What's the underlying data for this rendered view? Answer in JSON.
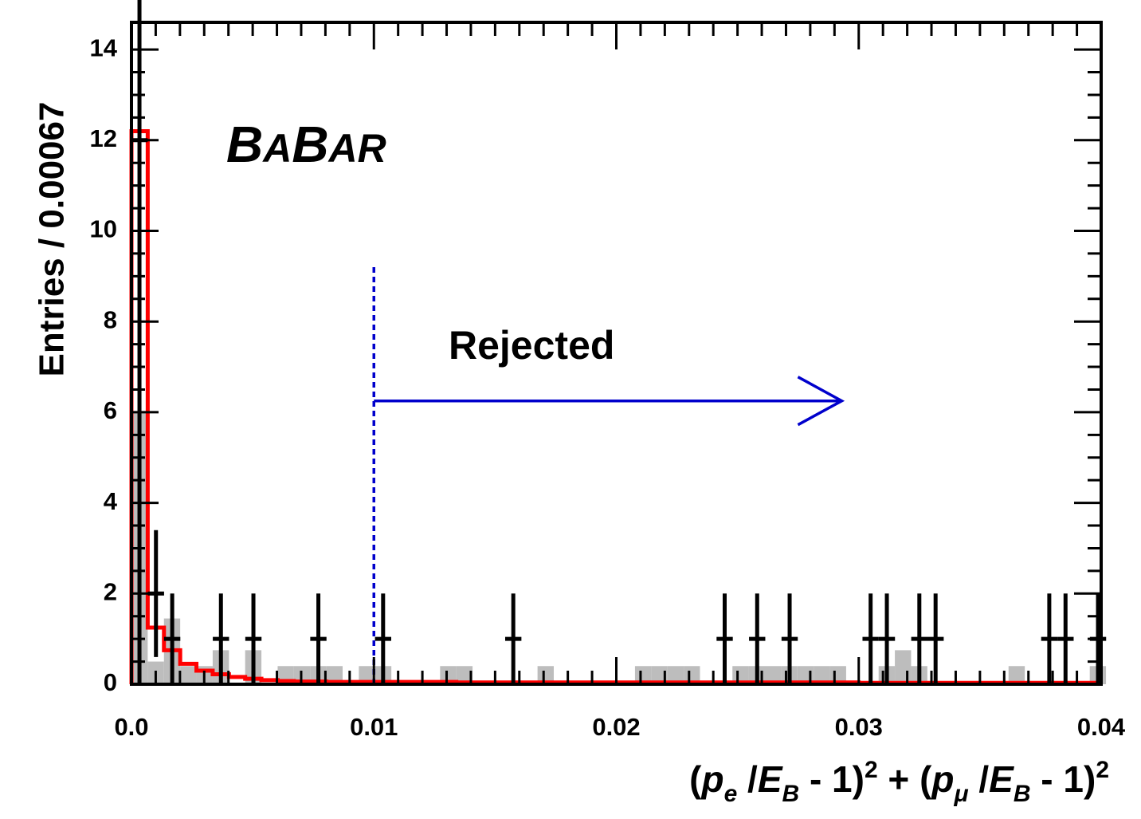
{
  "chart_data": {
    "type": "histogram",
    "bin_width": 0.00067,
    "xlim": [
      0.0,
      0.04
    ],
    "ylim": [
      0,
      14.6
    ],
    "x_ticks": [
      {
        "v": 0.0,
        "label": "0.0"
      },
      {
        "v": 0.01,
        "label": "0.01"
      },
      {
        "v": 0.02,
        "label": "0.02"
      },
      {
        "v": 0.03,
        "label": "0.03"
      },
      {
        "v": 0.04,
        "label": "0.04"
      }
    ],
    "y_ticks": [
      {
        "v": 0,
        "label": "0"
      },
      {
        "v": 2,
        "label": "2"
      },
      {
        "v": 4,
        "label": "4"
      },
      {
        "v": 6,
        "label": "6"
      },
      {
        "v": 8,
        "label": "8"
      },
      {
        "v": 10,
        "label": "10"
      },
      {
        "v": 12,
        "label": "12"
      },
      {
        "v": 14,
        "label": "14"
      }
    ],
    "ylabel": "Entries / 0.00067",
    "xlabel": {
      "p": "p",
      "e": "e",
      "mu": "μ",
      "E": "E",
      "B": "B",
      "open": "(",
      "slash": " /",
      "minus_one": " - 1)",
      "two": "2",
      "plus": " + "
    },
    "experiment_label": {
      "big1": "B",
      "small1": "A",
      "big2": "B",
      "small2": "AR"
    },
    "cut": {
      "x": 0.01,
      "label": "Rejected",
      "arrow_to": 0.0293,
      "arrow_y": 6.25,
      "line_top": 9.2
    },
    "styles": {
      "data": "#000000",
      "background": "#bdbdbd",
      "fit": "#ff0000",
      "cut": "#0000cc"
    },
    "series": [
      {
        "name": "",
        "style": "gray filled histogram",
        "bins": [
          [
            0.0,
            6.0
          ],
          [
            0.00067,
            0.5
          ],
          [
            0.00134,
            1.45
          ],
          [
            0.00201,
            0.4
          ],
          [
            0.00268,
            0.4
          ],
          [
            0.00335,
            0.75
          ],
          [
            0.00469,
            0.75
          ],
          [
            0.00603,
            0.4
          ],
          [
            0.0067,
            0.4
          ],
          [
            0.00737,
            0.4
          ],
          [
            0.00804,
            0.4
          ],
          [
            0.00938,
            0.4
          ],
          [
            0.01005,
            0.4
          ],
          [
            0.01273,
            0.4
          ],
          [
            0.0134,
            0.4
          ],
          [
            0.01675,
            0.4
          ],
          [
            0.02077,
            0.4
          ],
          [
            0.02144,
            0.4
          ],
          [
            0.02211,
            0.4
          ],
          [
            0.02278,
            0.4
          ],
          [
            0.02479,
            0.4
          ],
          [
            0.02546,
            0.4
          ],
          [
            0.02613,
            0.4
          ],
          [
            0.0268,
            0.4
          ],
          [
            0.02747,
            0.4
          ],
          [
            0.02814,
            0.4
          ],
          [
            0.02881,
            0.4
          ],
          [
            0.03082,
            0.4
          ],
          [
            0.03149,
            0.75
          ],
          [
            0.03216,
            0.4
          ],
          [
            0.03618,
            0.4
          ],
          [
            0.03953,
            0.4
          ]
        ]
      },
      {
        "name": "",
        "style": "data points with error bars",
        "points": [
          [
            0.00033,
            12.0,
            12.0
          ],
          [
            0.00101,
            2.0,
            1.4
          ],
          [
            0.00168,
            1.0,
            1.0
          ],
          [
            0.00369,
            1.0,
            1.0
          ],
          [
            0.00503,
            1.0,
            1.0
          ],
          [
            0.00771,
            1.0,
            1.0
          ],
          [
            0.01038,
            1.0,
            1.0
          ],
          [
            0.01575,
            1.0,
            1.0
          ],
          [
            0.02447,
            1.0,
            1.0
          ],
          [
            0.02581,
            1.0,
            1.0
          ],
          [
            0.02715,
            1.0,
            1.0
          ],
          [
            0.03049,
            1.0,
            1.0
          ],
          [
            0.03116,
            1.0,
            1.0
          ],
          [
            0.0325,
            1.0,
            1.0
          ],
          [
            0.03317,
            1.0,
            1.0
          ],
          [
            0.03786,
            1.0,
            1.0
          ],
          [
            0.03853,
            1.0,
            1.0
          ],
          [
            0.03987,
            1.0,
            1.0
          ]
        ]
      },
      {
        "name": "",
        "style": "red step curve",
        "bins": [
          [
            0.0,
            12.2
          ],
          [
            0.00067,
            1.25
          ],
          [
            0.00134,
            0.75
          ],
          [
            0.00201,
            0.45
          ],
          [
            0.00268,
            0.3
          ],
          [
            0.00335,
            0.22
          ],
          [
            0.00402,
            0.16
          ],
          [
            0.00469,
            0.12
          ],
          [
            0.00536,
            0.09
          ],
          [
            0.00603,
            0.07
          ],
          [
            0.0067,
            0.06
          ],
          [
            0.00804,
            0.05
          ],
          [
            0.01005,
            0.05
          ],
          [
            0.0134,
            0.04
          ],
          [
            0.02,
            0.04
          ],
          [
            0.03,
            0.03
          ],
          [
            0.04,
            0.03
          ]
        ]
      }
    ]
  }
}
